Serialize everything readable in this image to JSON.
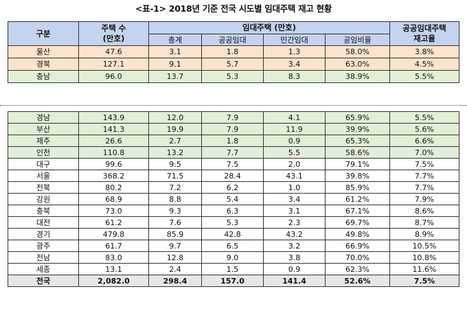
{
  "title": "<표-1> 2018년 기준 전국 시도별 임대주택 재고 현황",
  "header": {
    "gubun": "구분",
    "housing_count": "주택 수",
    "housing_unit": "(만호)",
    "rental_group": "임대주택 (만호)",
    "total": "총계",
    "public": "공공임대",
    "private": "민간임대",
    "public_ratio": "공임비율",
    "stock_rate_line1": "공공임대주택",
    "stock_rate_line2": "재고율"
  },
  "top_rows": [
    {
      "region": "울산",
      "housing": "47.6",
      "total": "3.1",
      "public": "1.8",
      "private": "1.3",
      "ratio": "58.0%",
      "rate": "3.8%",
      "color": "#fbe3cc"
    },
    {
      "region": "경북",
      "housing": "127.1",
      "total": "9.1",
      "public": "5.7",
      "private": "3.4",
      "ratio": "63.0%",
      "rate": "4.5%",
      "color": "#fbe3cc"
    },
    {
      "region": "충남",
      "housing": "96.0",
      "total": "13.7",
      "public": "5.3",
      "private": "8.3",
      "ratio": "38.9%",
      "rate": "5.5%",
      "color": "#e1efd6"
    }
  ],
  "bottom_rows": [
    {
      "region": "경남",
      "housing": "143.9",
      "total": "12.0",
      "public": "7.9",
      "private": "4.1",
      "ratio": "65.9%",
      "rate": "5.5%",
      "color": "#e1efd6"
    },
    {
      "region": "부산",
      "housing": "141.3",
      "total": "19.9",
      "public": "7.9",
      "private": "11.9",
      "ratio": "39.9%",
      "rate": "5.6%",
      "color": "#e1efd6"
    },
    {
      "region": "제주",
      "housing": "26.6",
      "total": "2.7",
      "public": "1.8",
      "private": "0.9",
      "ratio": "65.3%",
      "rate": "6.6%",
      "color": "#e1efd6"
    },
    {
      "region": "인천",
      "housing": "110.8",
      "total": "13.2",
      "public": "7.7",
      "private": "5.5",
      "ratio": "58.6%",
      "rate": "7.0%",
      "color": "#e1efd6"
    },
    {
      "region": "대구",
      "housing": "99.6",
      "total": "9.5",
      "public": "7.5",
      "private": "2.0",
      "ratio": "79.1%",
      "rate": "7.5%",
      "color": "#ffffff"
    },
    {
      "region": "서울",
      "housing": "368.2",
      "total": "71.5",
      "public": "28.4",
      "private": "43.1",
      "ratio": "39.8%",
      "rate": "7.7%",
      "color": "#ffffff"
    },
    {
      "region": "전북",
      "housing": "80.2",
      "total": "7.2",
      "public": "6.2",
      "private": "1.0",
      "ratio": "85.9%",
      "rate": "7.7%",
      "color": "#ffffff"
    },
    {
      "region": "강원",
      "housing": "68.9",
      "total": "8.8",
      "public": "5.4",
      "private": "3.4",
      "ratio": "61.2%",
      "rate": "7.9%",
      "color": "#ffffff"
    },
    {
      "region": "충북",
      "housing": "73.0",
      "total": "9.3",
      "public": "6.3",
      "private": "3.1",
      "ratio": "67.1%",
      "rate": "8.6%",
      "color": "#ffffff"
    },
    {
      "region": "대전",
      "housing": "61.2",
      "total": "7.6",
      "public": "5.3",
      "private": "2.3",
      "ratio": "69.7%",
      "rate": "8.7%",
      "color": "#ffffff"
    },
    {
      "region": "경기",
      "housing": "479.8",
      "total": "85.9",
      "public": "42.8",
      "private": "43.2",
      "ratio": "49.8%",
      "rate": "8.9%",
      "color": "#ffffff"
    },
    {
      "region": "광주",
      "housing": "61.7",
      "total": "9.7",
      "public": "6.5",
      "private": "3.2",
      "ratio": "66.9%",
      "rate": "10.5%",
      "color": "#ffffff"
    },
    {
      "region": "전남",
      "housing": "83.0",
      "total": "12.8",
      "public": "9.0",
      "private": "3.8",
      "ratio": "70.0%",
      "rate": "10.8%",
      "color": "#ffffff"
    },
    {
      "region": "세종",
      "housing": "13.1",
      "total": "2.4",
      "public": "1.5",
      "private": "0.9",
      "ratio": "62.3%",
      "rate": "11.6%",
      "color": "#ffffff"
    }
  ],
  "total_row": {
    "region": "전국",
    "housing": "2,082.0",
    "total": "298.4",
    "public": "157.0",
    "private": "141.4",
    "ratio": "52.6%",
    "rate": "7.5%",
    "color": "#e6e6e6"
  }
}
